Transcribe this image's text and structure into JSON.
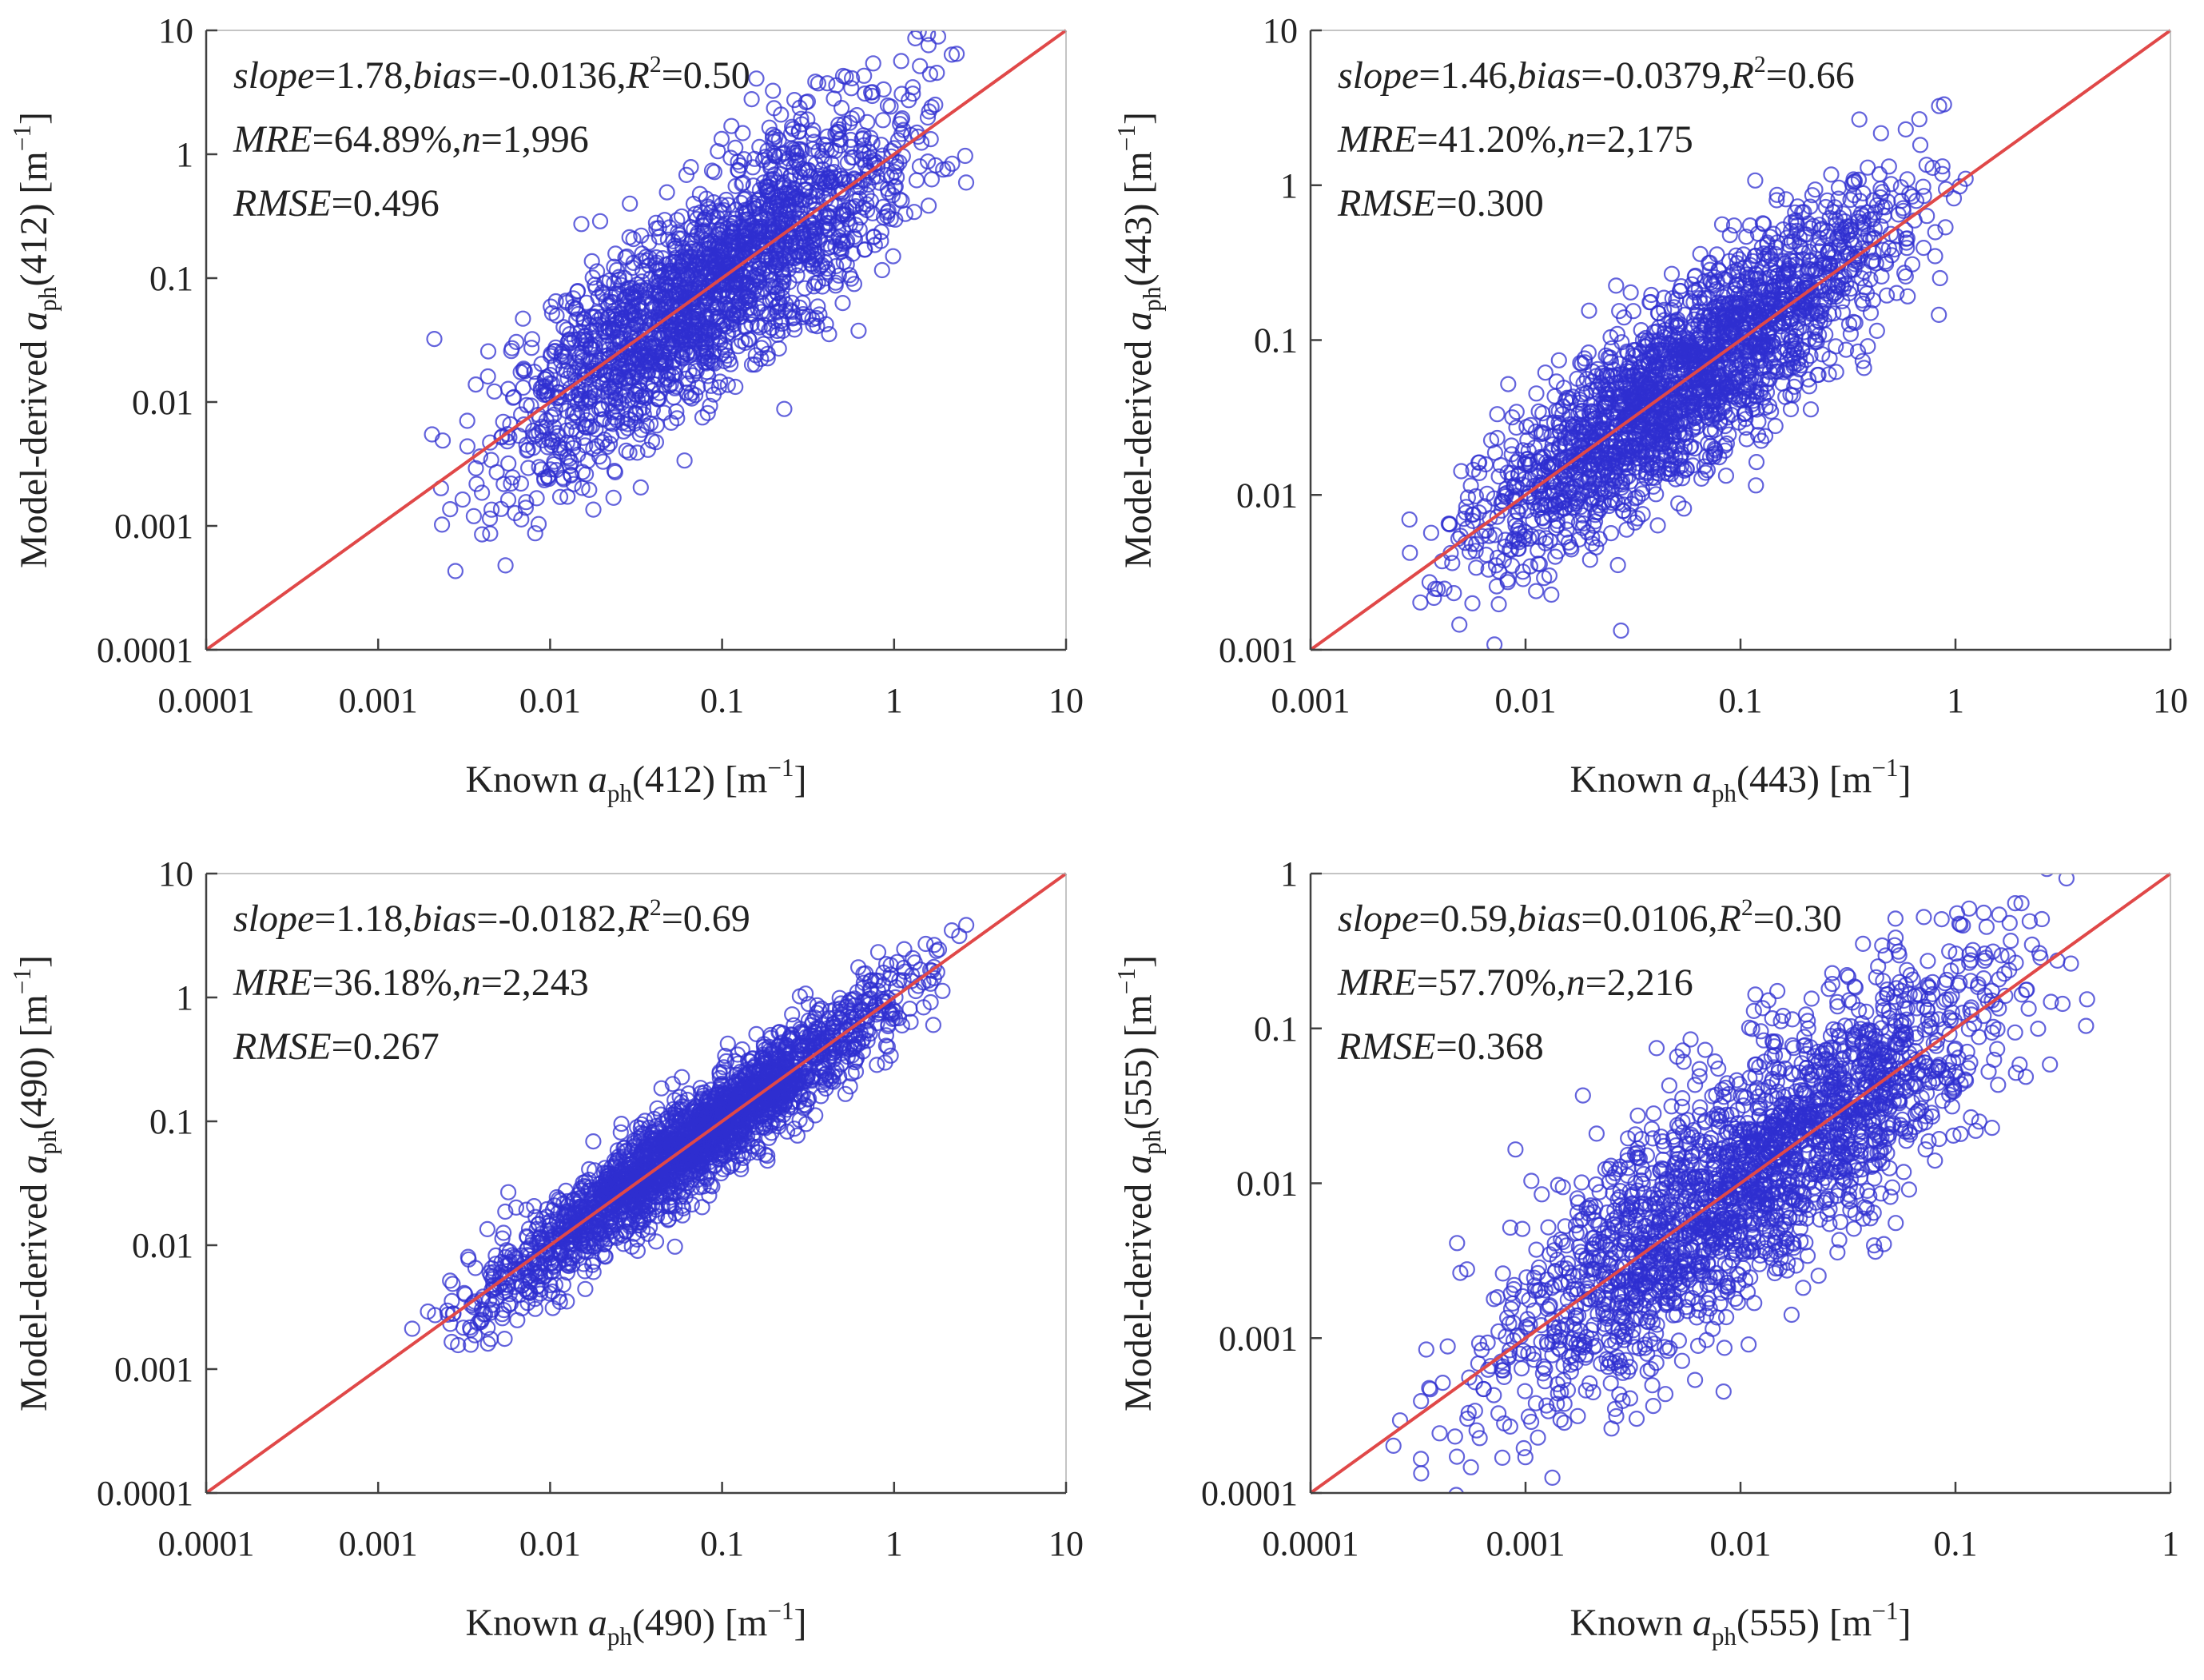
{
  "colors": {
    "points": "#2f2fd0",
    "identity_line": "#e04848",
    "axis": "#404040",
    "text": "#222222"
  },
  "chart_data": [
    {
      "id": "p412",
      "type": "scatter",
      "scale": "log-log",
      "xlim": [
        0.0001,
        10
      ],
      "ylim": [
        0.0001,
        10
      ],
      "xticks": [
        "0.0001",
        "0.001",
        "0.01",
        "0.1",
        "1",
        "10"
      ],
      "yticks": [
        "0.0001",
        "0.001",
        "0.01",
        "0.1",
        "1",
        "10"
      ],
      "xlabel": {
        "prefix": "Known ",
        "var": "a",
        "sub": "ph",
        "band": "(412)",
        "unit": " [m",
        "sup": "−1",
        "close": "]"
      },
      "ylabel": {
        "prefix": "Model-derived ",
        "var": "a",
        "sub": "ph",
        "band": "(412)",
        "unit": " [m",
        "sup": "−1",
        "close": "]"
      },
      "annotation": [
        [
          {
            "t": "slope",
            "i": true
          },
          {
            "t": "=1.78,"
          },
          {
            "t": "bias",
            "i": true
          },
          {
            "t": "=-0.0136,"
          },
          {
            "t": "R",
            "i": true
          },
          {
            "t": "2",
            "sup": true
          },
          {
            "t": "=0.50"
          }
        ],
        [
          {
            "t": "MRE",
            "i": true
          },
          {
            "t": "=64.89%,"
          },
          {
            "t": "n",
            "i": true
          },
          {
            "t": "=1,996"
          }
        ],
        [
          {
            "t": "RMSE",
            "i": true
          },
          {
            "t": "=0.496"
          }
        ]
      ],
      "identity_line": true,
      "series": [
        {
          "name": "aph(412)",
          "n": 1996,
          "x_range": [
            0.0015,
            4.5
          ],
          "scatter_sd": 0.42
        }
      ]
    },
    {
      "id": "p443",
      "type": "scatter",
      "scale": "log-log",
      "xlim": [
        0.001,
        10
      ],
      "ylim": [
        0.001,
        10
      ],
      "xticks": [
        "0.001",
        "0.01",
        "0.1",
        "1",
        "10"
      ],
      "yticks": [
        "0.001",
        "0.01",
        "0.1",
        "1",
        "10"
      ],
      "xlabel": {
        "prefix": "Known ",
        "var": "a",
        "sub": "ph",
        "band": "(443)",
        "unit": " [m",
        "sup": "−1",
        "close": "]"
      },
      "ylabel": {
        "prefix": "Model-derived ",
        "var": "a",
        "sub": "ph",
        "band": "(443)",
        "unit": " [m",
        "sup": "−1",
        "close": "]"
      },
      "annotation": [
        [
          {
            "t": "slope",
            "i": true
          },
          {
            "t": "=1.46,"
          },
          {
            "t": "bias",
            "i": true
          },
          {
            "t": "=-0.0379,"
          },
          {
            "t": "R",
            "i": true
          },
          {
            "t": "2",
            "sup": true
          },
          {
            "t": "=0.66"
          }
        ],
        [
          {
            "t": "MRE",
            "i": true
          },
          {
            "t": "=41.20%,"
          },
          {
            "t": "n",
            "i": true
          },
          {
            "t": "=2,175"
          }
        ],
        [
          {
            "t": "RMSE",
            "i": true
          },
          {
            "t": "=0.300"
          }
        ]
      ],
      "identity_line": true,
      "series": [
        {
          "name": "aph(443)",
          "n": 2175,
          "x_range": [
            0.002,
            1.5
          ],
          "scatter_sd": 0.3
        }
      ]
    },
    {
      "id": "p490",
      "type": "scatter",
      "scale": "log-log",
      "xlim": [
        0.0001,
        10
      ],
      "ylim": [
        0.0001,
        10
      ],
      "xticks": [
        "0.0001",
        "0.001",
        "0.01",
        "0.1",
        "1",
        "10"
      ],
      "yticks": [
        "0.0001",
        "0.001",
        "0.01",
        "0.1",
        "1",
        "10"
      ],
      "xlabel": {
        "prefix": "Known ",
        "var": "a",
        "sub": "ph",
        "band": "(490)",
        "unit": " [m",
        "sup": "−1",
        "close": "]"
      },
      "ylabel": {
        "prefix": "Model-derived ",
        "var": "a",
        "sub": "ph",
        "band": "(490)",
        "unit": " [m",
        "sup": "−1",
        "close": "]"
      },
      "annotation": [
        [
          {
            "t": "slope",
            "i": true
          },
          {
            "t": "=1.18,"
          },
          {
            "t": "bias",
            "i": true
          },
          {
            "t": "=-0.0182,"
          },
          {
            "t": "R",
            "i": true
          },
          {
            "t": "2",
            "sup": true
          },
          {
            "t": "=0.69"
          }
        ],
        [
          {
            "t": "MRE",
            "i": true
          },
          {
            "t": "=36.18%,"
          },
          {
            "t": "n",
            "i": true
          },
          {
            "t": "=2,243"
          }
        ],
        [
          {
            "t": "RMSE",
            "i": true
          },
          {
            "t": "=0.267"
          }
        ]
      ],
      "identity_line": true,
      "series": [
        {
          "name": "aph(490)",
          "n": 2243,
          "x_range": [
            0.0013,
            3.2
          ],
          "scatter_sd": 0.2
        }
      ]
    },
    {
      "id": "p555",
      "type": "scatter",
      "scale": "log-log",
      "xlim": [
        0.0001,
        1
      ],
      "ylim": [
        0.0001,
        1
      ],
      "xticks": [
        "0.0001",
        "0.001",
        "0.01",
        "0.1",
        "1"
      ],
      "yticks": [
        "0.0001",
        "0.001",
        "0.01",
        "0.1",
        "1"
      ],
      "xlabel": {
        "prefix": "Known ",
        "var": "a",
        "sub": "ph",
        "band": "(555)",
        "unit": " [m",
        "sup": "−1",
        "close": "]"
      },
      "ylabel": {
        "prefix": "Model-derived ",
        "var": "a",
        "sub": "ph",
        "band": "(555)",
        "unit": " [m",
        "sup": "−1",
        "close": "]"
      },
      "annotation": [
        [
          {
            "t": "slope",
            "i": true
          },
          {
            "t": "=0.59,"
          },
          {
            "t": "bias",
            "i": true
          },
          {
            "t": "=0.0106,"
          },
          {
            "t": "R",
            "i": true
          },
          {
            "t": "2",
            "sup": true
          },
          {
            "t": "=0.30"
          }
        ],
        [
          {
            "t": "MRE",
            "i": true
          },
          {
            "t": "=57.70%,"
          },
          {
            "t": "n",
            "i": true
          },
          {
            "t": "=2,216"
          }
        ],
        [
          {
            "t": "RMSE",
            "i": true
          },
          {
            "t": "=0.368"
          }
        ]
      ],
      "identity_line": true,
      "series": [
        {
          "name": "aph(555)",
          "n": 2216,
          "x_range": [
            0.0002,
            0.55
          ],
          "scatter_sd": 0.38
        }
      ]
    }
  ]
}
